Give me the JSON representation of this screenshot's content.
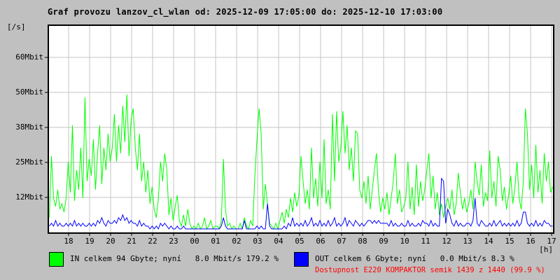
{
  "title": "Graf provozu lanzov_cl_wlan od: 2025-12-09 17:05:00 do: 2025-12-10 17:03:00",
  "y_axis": {
    "unit_label": "[/s]",
    "ticks": [
      "60Mbit",
      "50Mbit",
      "38Mbit",
      "25Mbit",
      "12Mbit"
    ]
  },
  "x_axis": {
    "unit_label": "[h]",
    "hours": [
      "18",
      "19",
      "20",
      "21",
      "22",
      "23",
      "00",
      "01",
      "02",
      "03",
      "04",
      "05",
      "06",
      "07",
      "08",
      "09",
      "10",
      "11",
      "12",
      "13",
      "14",
      "15",
      "16",
      "17"
    ]
  },
  "legend": {
    "in": {
      "label": "IN celkem 94 Gbyte; nyní   8.0 Mbit/s 179.2 %",
      "color": "#00ff00"
    },
    "out": {
      "label": "OUT celkem 6 Gbyte; nyní   0.0 Mbit/s 8.3 %",
      "color": "#0000ff"
    }
  },
  "availability": {
    "text": "Dostupnost E220 KOMPAKTOR semik 1439 z 1440 (99.9 %)",
    "color": "#ff0000"
  },
  "colors": {
    "background": "#c0c0c0",
    "plot_background": "#ffffff",
    "grid": "#c6c6c6",
    "border": "#000000",
    "in": "#00ff00",
    "out": "#0000ff",
    "availability": "#ff0000"
  },
  "chart_data": {
    "type": "line",
    "title": "Graf provozu lanzov_cl_wlan",
    "time_from": "2025-12-09 17:05:00",
    "time_to": "2025-12-10 17:03:00",
    "xlabel": "[h]",
    "ylabel": "[/s]",
    "unit": "Mbit/s",
    "sample_minutes": 6,
    "ylim": [
      0,
      73.75
    ],
    "ytick_values": [
      12,
      25,
      38,
      50,
      60
    ],
    "grid": true,
    "legend_position": "bottom",
    "x_hour_labels": [
      "18",
      "19",
      "20",
      "21",
      "22",
      "23",
      "00",
      "01",
      "02",
      "03",
      "04",
      "05",
      "06",
      "07",
      "08",
      "09",
      "10",
      "11",
      "12",
      "13",
      "14",
      "15",
      "16",
      "17"
    ],
    "series": [
      {
        "name": "IN",
        "total": "94 Gbyte",
        "current": "8.0 Mbit/s",
        "percent": "179.2 %",
        "color": "#00ff00",
        "values": [
          5,
          27,
          12,
          9,
          15,
          8,
          10,
          7,
          12,
          25,
          14,
          38,
          11,
          22,
          15,
          30,
          12,
          48,
          18,
          26,
          20,
          33,
          15,
          28,
          38,
          17,
          30,
          22,
          35,
          25,
          30,
          42,
          25,
          38,
          28,
          45,
          32,
          49,
          27,
          40,
          44,
          30,
          22,
          35,
          18,
          25,
          14,
          22,
          10,
          16,
          8,
          5,
          12,
          25,
          18,
          28,
          22,
          6,
          12,
          4,
          9,
          13,
          4,
          2,
          6,
          2,
          8,
          3,
          1,
          2,
          1,
          3,
          1,
          2,
          5,
          1,
          2,
          4,
          1,
          2,
          2,
          1,
          4,
          26,
          8,
          2,
          3,
          1,
          2,
          1,
          1,
          3,
          1,
          5,
          2,
          1,
          4,
          2,
          20,
          33,
          44,
          35,
          8,
          17,
          10,
          3,
          2,
          1,
          3,
          1,
          4,
          7,
          3,
          8,
          5,
          12,
          7,
          14,
          9,
          13,
          27,
          18,
          10,
          15,
          8,
          30,
          12,
          19,
          9,
          25,
          12,
          33,
          10,
          15,
          8,
          42,
          18,
          43,
          25,
          30,
          43,
          28,
          38,
          22,
          30,
          18,
          36,
          35,
          15,
          12,
          18,
          10,
          20,
          8,
          15,
          22,
          28,
          14,
          7,
          12,
          8,
          14,
          6,
          12,
          18,
          28,
          10,
          15,
          7,
          9,
          12,
          25,
          8,
          16,
          6,
          24,
          9,
          18,
          11,
          15,
          22,
          28,
          12,
          20,
          8,
          14,
          6,
          10,
          5,
          9,
          12,
          8,
          15,
          6,
          10,
          21,
          14,
          8,
          12,
          7,
          10,
          15,
          8,
          25,
          18,
          13,
          24,
          9,
          14,
          11,
          29,
          12,
          18,
          9,
          27,
          22,
          11,
          16,
          8,
          13,
          20,
          10,
          16,
          25,
          12,
          8,
          18,
          44,
          35,
          15,
          24,
          12,
          31,
          14,
          22,
          10,
          28,
          18,
          25,
          14,
          16
        ]
      },
      {
        "name": "OUT",
        "total": "6 Gbyte",
        "current": "0.0 Mbit/s",
        "percent": "8.3 %",
        "color": "#0000ff",
        "values": [
          2,
          3,
          2,
          4,
          2,
          3,
          2,
          2,
          3,
          2,
          3,
          2,
          4,
          2,
          3,
          2,
          3,
          2,
          2,
          3,
          2,
          3,
          2,
          4,
          3,
          5,
          3,
          2,
          4,
          3,
          3,
          4,
          3,
          5,
          4,
          6,
          4,
          5,
          3,
          4,
          3,
          3,
          2,
          4,
          2,
          3,
          2,
          2,
          1,
          2,
          1,
          2,
          1,
          3,
          2,
          3,
          2,
          1,
          2,
          1,
          1,
          2,
          1,
          1,
          2,
          1,
          1,
          1,
          1,
          1,
          1,
          1,
          1,
          1,
          1,
          1,
          1,
          1,
          1,
          1,
          1,
          1,
          2,
          5,
          2,
          1,
          1,
          1,
          1,
          1,
          1,
          1,
          1,
          4,
          1,
          1,
          1,
          1,
          1,
          2,
          1,
          2,
          1,
          1,
          10,
          2,
          1,
          1,
          1,
          1,
          1,
          1,
          2,
          1,
          3,
          2,
          5,
          2,
          3,
          2,
          3,
          2,
          4,
          2,
          3,
          5,
          2,
          3,
          2,
          4,
          2,
          3,
          2,
          4,
          2,
          3,
          5,
          2,
          3,
          2,
          3,
          5,
          2,
          4,
          3,
          2,
          4,
          3,
          2,
          3,
          2,
          3,
          4,
          4,
          3,
          4,
          3,
          4,
          3,
          3,
          3,
          3,
          2,
          4,
          2,
          3,
          2,
          2,
          3,
          2,
          2,
          4,
          2,
          3,
          2,
          2,
          3,
          2,
          4,
          3,
          3,
          2,
          4,
          2,
          3,
          2,
          2,
          19,
          18,
          3,
          8,
          6,
          3,
          2,
          4,
          2,
          3,
          2,
          2,
          3,
          3,
          2,
          4,
          12,
          3,
          2,
          4,
          3,
          2,
          2,
          3,
          2,
          4,
          2,
          3,
          4,
          2,
          3,
          2,
          3,
          2,
          3,
          2,
          4,
          2,
          3,
          7,
          7,
          3,
          2,
          3,
          2,
          4,
          2,
          3,
          2,
          4,
          3,
          3,
          2,
          2
        ]
      }
    ]
  }
}
